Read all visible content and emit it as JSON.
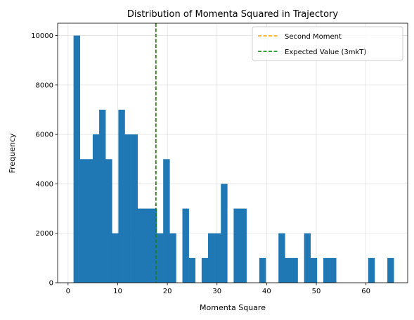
{
  "chart_data": {
    "type": "bar",
    "title": "Distribution of Momenta Squared in Trajectory",
    "xlabel": "Momenta Square",
    "ylabel": "Frequency",
    "xlim": [
      -2.1,
      68.4
    ],
    "ylim": [
      0,
      10500
    ],
    "xticks": [
      0,
      10,
      20,
      30,
      40,
      50,
      60
    ],
    "yticks": [
      0,
      2000,
      4000,
      6000,
      8000,
      10000
    ],
    "grid": true,
    "bar_color": "#1f77b4",
    "bin_edges": [
      1.1,
      2.39,
      3.68,
      4.97,
      6.26,
      7.55,
      8.84,
      10.13,
      11.42,
      12.71,
      14.0,
      15.29,
      16.58,
      17.87,
      19.16,
      20.45,
      21.74,
      23.03,
      24.32,
      25.61,
      26.9,
      28.19,
      29.48,
      30.77,
      32.06,
      33.35,
      34.64,
      35.93,
      37.22,
      38.51,
      39.8,
      41.09,
      42.38,
      43.67,
      44.96,
      46.25,
      47.54,
      48.83,
      50.12,
      51.41,
      52.7,
      53.99,
      55.28,
      56.57,
      57.86,
      59.15,
      60.44,
      61.73,
      63.02,
      64.31,
      65.6
    ],
    "values": [
      10000,
      5000,
      5000,
      6000,
      7000,
      5000,
      2000,
      7000,
      6000,
      6000,
      3000,
      3000,
      3000,
      2000,
      5000,
      2000,
      0,
      3000,
      1000,
      0,
      1000,
      2000,
      2000,
      4000,
      0,
      3000,
      3000,
      0,
      0,
      1000,
      0,
      0,
      2000,
      1000,
      1000,
      0,
      2000,
      1000,
      0,
      1000,
      1000,
      0,
      0,
      0,
      0,
      0,
      1000,
      0,
      0,
      1000
    ],
    "vlines": [
      {
        "name": "Second Moment",
        "x": 17.7,
        "color": "#ffa500",
        "style": "dashed"
      },
      {
        "name": "Expected Value (3mkT)",
        "x": 17.7,
        "color": "#008000",
        "style": "dashed"
      }
    ],
    "legend_position": "top-right"
  }
}
